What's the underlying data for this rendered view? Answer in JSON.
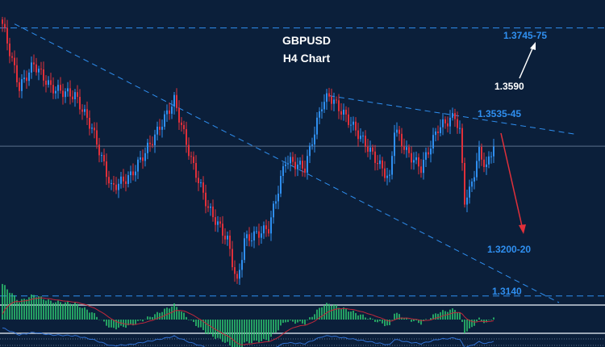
{
  "chart_data": {
    "type": "candlestick",
    "title": "GBPUSD",
    "subtitle": "H4 Chart",
    "ylim": [
      1.3125,
      1.3808
    ],
    "grid": false,
    "key_points": [
      [
        0,
        1.3754
      ],
      [
        7,
        1.361
      ],
      [
        13,
        1.3664
      ],
      [
        20,
        1.361
      ],
      [
        30,
        1.3592
      ],
      [
        37,
        1.3519
      ],
      [
        45,
        1.3384
      ],
      [
        53,
        1.3411
      ],
      [
        63,
        1.3501
      ],
      [
        71,
        1.3582
      ],
      [
        78,
        1.3447
      ],
      [
        85,
        1.3339
      ],
      [
        93,
        1.3266
      ],
      [
        97,
        1.3167
      ],
      [
        100,
        1.3266
      ],
      [
        110,
        1.3293
      ],
      [
        117,
        1.3447
      ],
      [
        125,
        1.3429
      ],
      [
        132,
        1.3573
      ],
      [
        135,
        1.3592
      ],
      [
        143,
        1.3537
      ],
      [
        150,
        1.3483
      ],
      [
        160,
        1.3402
      ],
      [
        162,
        1.3519
      ],
      [
        167,
        1.3465
      ],
      [
        173,
        1.3429
      ],
      [
        180,
        1.3519
      ],
      [
        187,
        1.3546
      ],
      [
        189,
        1.351
      ],
      [
        191,
        1.3357
      ],
      [
        193,
        1.3375
      ],
      [
        197,
        1.3465
      ],
      [
        200,
        1.3429
      ],
      [
        203,
        1.3483
      ]
    ],
    "levels": [
      {
        "price": 1.3745,
        "label": "1.3745-75",
        "style": "dashed"
      },
      {
        "price": 1.3478,
        "label": "",
        "style": "solid"
      },
      {
        "price": 1.314,
        "label": "1.3140",
        "style": "dashed"
      }
    ],
    "annotations": [
      {
        "text": "1.3535-45",
        "price": 1.354
      },
      {
        "text": "1.3590",
        "price": 1.359
      },
      {
        "text": "1.3200-20",
        "price": 1.321
      }
    ],
    "trendlines": [
      [
        [
          5,
          1.3754
        ],
        [
          110,
          1.344
        ],
        [
          230,
          1.3125
        ]
      ],
      [
        [
          135,
          1.3592
        ],
        [
          237,
          1.3505
        ]
      ]
    ],
    "colors": {
      "up": "#2f8ff0",
      "down": "#e0303a",
      "macd": "#2ecc71",
      "signal": "#c0283a",
      "level": "#2f8ff0",
      "bg": "#0b1f3a"
    }
  }
}
